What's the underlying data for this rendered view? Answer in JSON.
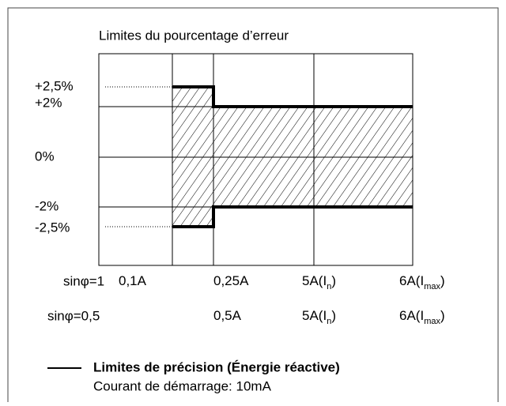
{
  "title": "Limites du pourcentage d’erreur",
  "y_labels": [
    "+2,5%",
    "+2%",
    "0%",
    "-2%",
    "-2,5%"
  ],
  "x_rows": [
    {
      "label": "sinφ=1",
      "ticks": [
        {
          "main": "0,1A"
        },
        {
          "main": "0,25A"
        },
        {
          "main": "5A(I",
          "sub": "n",
          "end": ")"
        },
        {
          "main": "6A(I",
          "sub": "max",
          "end": ")"
        }
      ]
    },
    {
      "label": "sinφ=0,5",
      "ticks": [
        {
          "main": "0,5A"
        },
        {
          "main": "5A(I",
          "sub": "n",
          "end": ")"
        },
        {
          "main": "6A(I",
          "sub": "max",
          "end": ")"
        }
      ]
    }
  ],
  "legend": {
    "label": "Limites de précision (Énergie réactive)",
    "note": "Courant de démarrage: 10mA"
  }
}
